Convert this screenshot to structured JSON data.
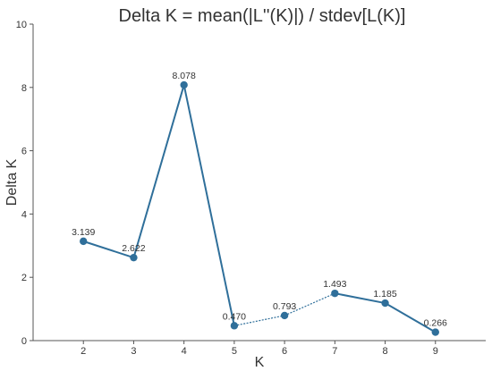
{
  "chart_data": {
    "type": "line",
    "title": "Delta K = mean(|L''(K)|) / stdev[L(K)]",
    "xlabel": "K",
    "ylabel": "Delta K",
    "x": [
      2,
      3,
      4,
      5,
      6,
      7,
      8,
      9
    ],
    "xlim": [
      1,
      10
    ],
    "ylim": [
      0,
      10
    ],
    "xticks": [
      2,
      3,
      4,
      5,
      6,
      7,
      8,
      9
    ],
    "yticks": [
      0,
      2,
      4,
      6,
      8,
      10
    ],
    "series": [
      {
        "values": [
          3.139,
          2.622,
          8.078,
          0.47,
          0.793,
          1.493,
          1.185,
          0.266
        ],
        "data_labels": [
          "3.139",
          "2.622",
          "8.078",
          "0.470",
          "0.793",
          "1.493",
          "1.185",
          "0.266"
        ],
        "color": "#2f6f9a",
        "dashed_segments": [
          [
            3,
            4
          ],
          [
            4,
            5
          ]
        ]
      }
    ],
    "grid": false,
    "legend": "none"
  }
}
